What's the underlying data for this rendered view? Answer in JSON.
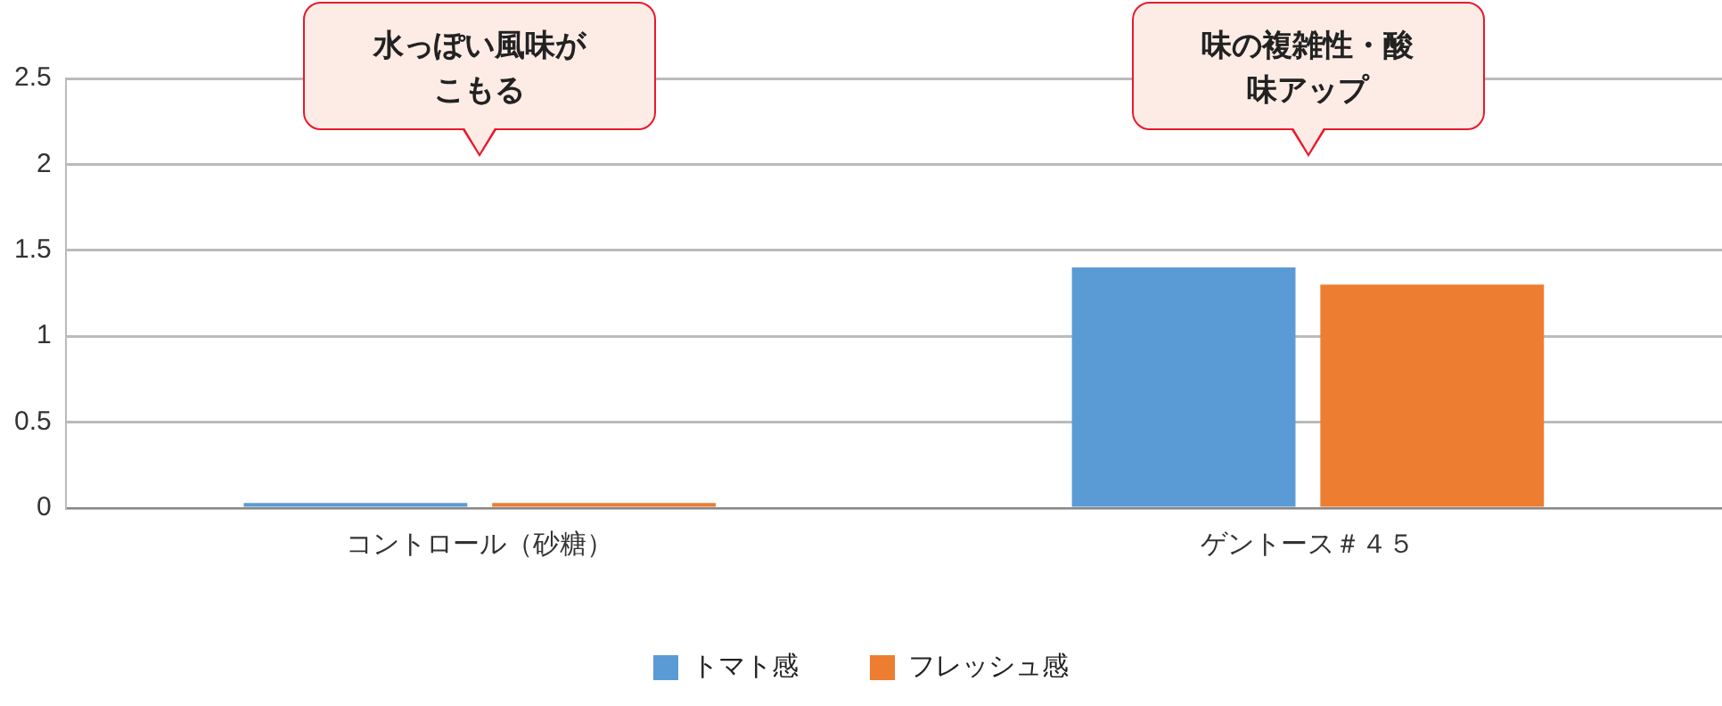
{
  "chart_data": {
    "type": "bar",
    "categories": [
      "コントロール（砂糖）",
      "ゲントース＃４５"
    ],
    "series": [
      {
        "name": "トマト感",
        "color": "#5b9bd5",
        "values": [
          0.03,
          1.4
        ]
      },
      {
        "name": "フレッシュ感",
        "color": "#ed7d31",
        "values": [
          0.03,
          1.3
        ]
      }
    ],
    "ylim": [
      0,
      2.5
    ],
    "yticks": [
      0,
      0.5,
      1,
      1.5,
      2,
      2.5
    ],
    "grid": "y",
    "legend": "bottom",
    "annotations": [
      "水っぽい風味がこもる",
      "味の複雑性・酸味アップ"
    ]
  }
}
